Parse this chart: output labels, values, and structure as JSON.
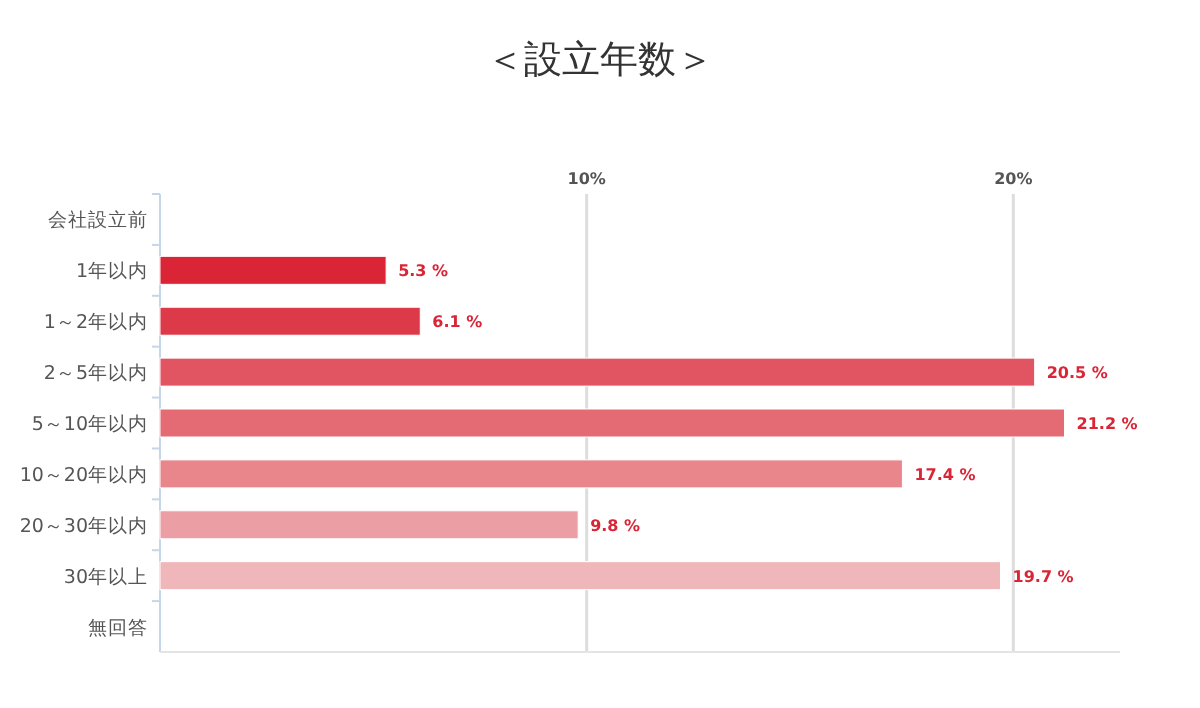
{
  "chart_data": {
    "type": "bar",
    "orientation": "horizontal",
    "title": "＜設立年数＞",
    "categories": [
      "会社設立前",
      "1年以内",
      "1～2年以内",
      "2～5年以内",
      "5～10年以内",
      "10～20年以内",
      "20～30年以内",
      "30年以上",
      "無回答"
    ],
    "values": [
      null,
      5.3,
      6.1,
      20.5,
      21.2,
      17.4,
      9.8,
      19.7,
      null
    ],
    "colors": [
      null,
      "#d92535",
      "#dc3a48",
      "#e05561",
      "#e46a74",
      "#e8868c",
      "#eb9ea3",
      "#f0b7ba",
      null
    ],
    "value_labels": [
      null,
      "5.3 %",
      "6.1 %",
      "20.5 %",
      "21.2 %",
      "17.4 %",
      "9.8 %",
      "19.7 %",
      null
    ],
    "xlim": [
      0,
      22.5
    ],
    "xticks": [
      {
        "value": 10,
        "label": "10%"
      },
      {
        "value": 20,
        "label": "20%"
      }
    ],
    "grid": "x"
  }
}
